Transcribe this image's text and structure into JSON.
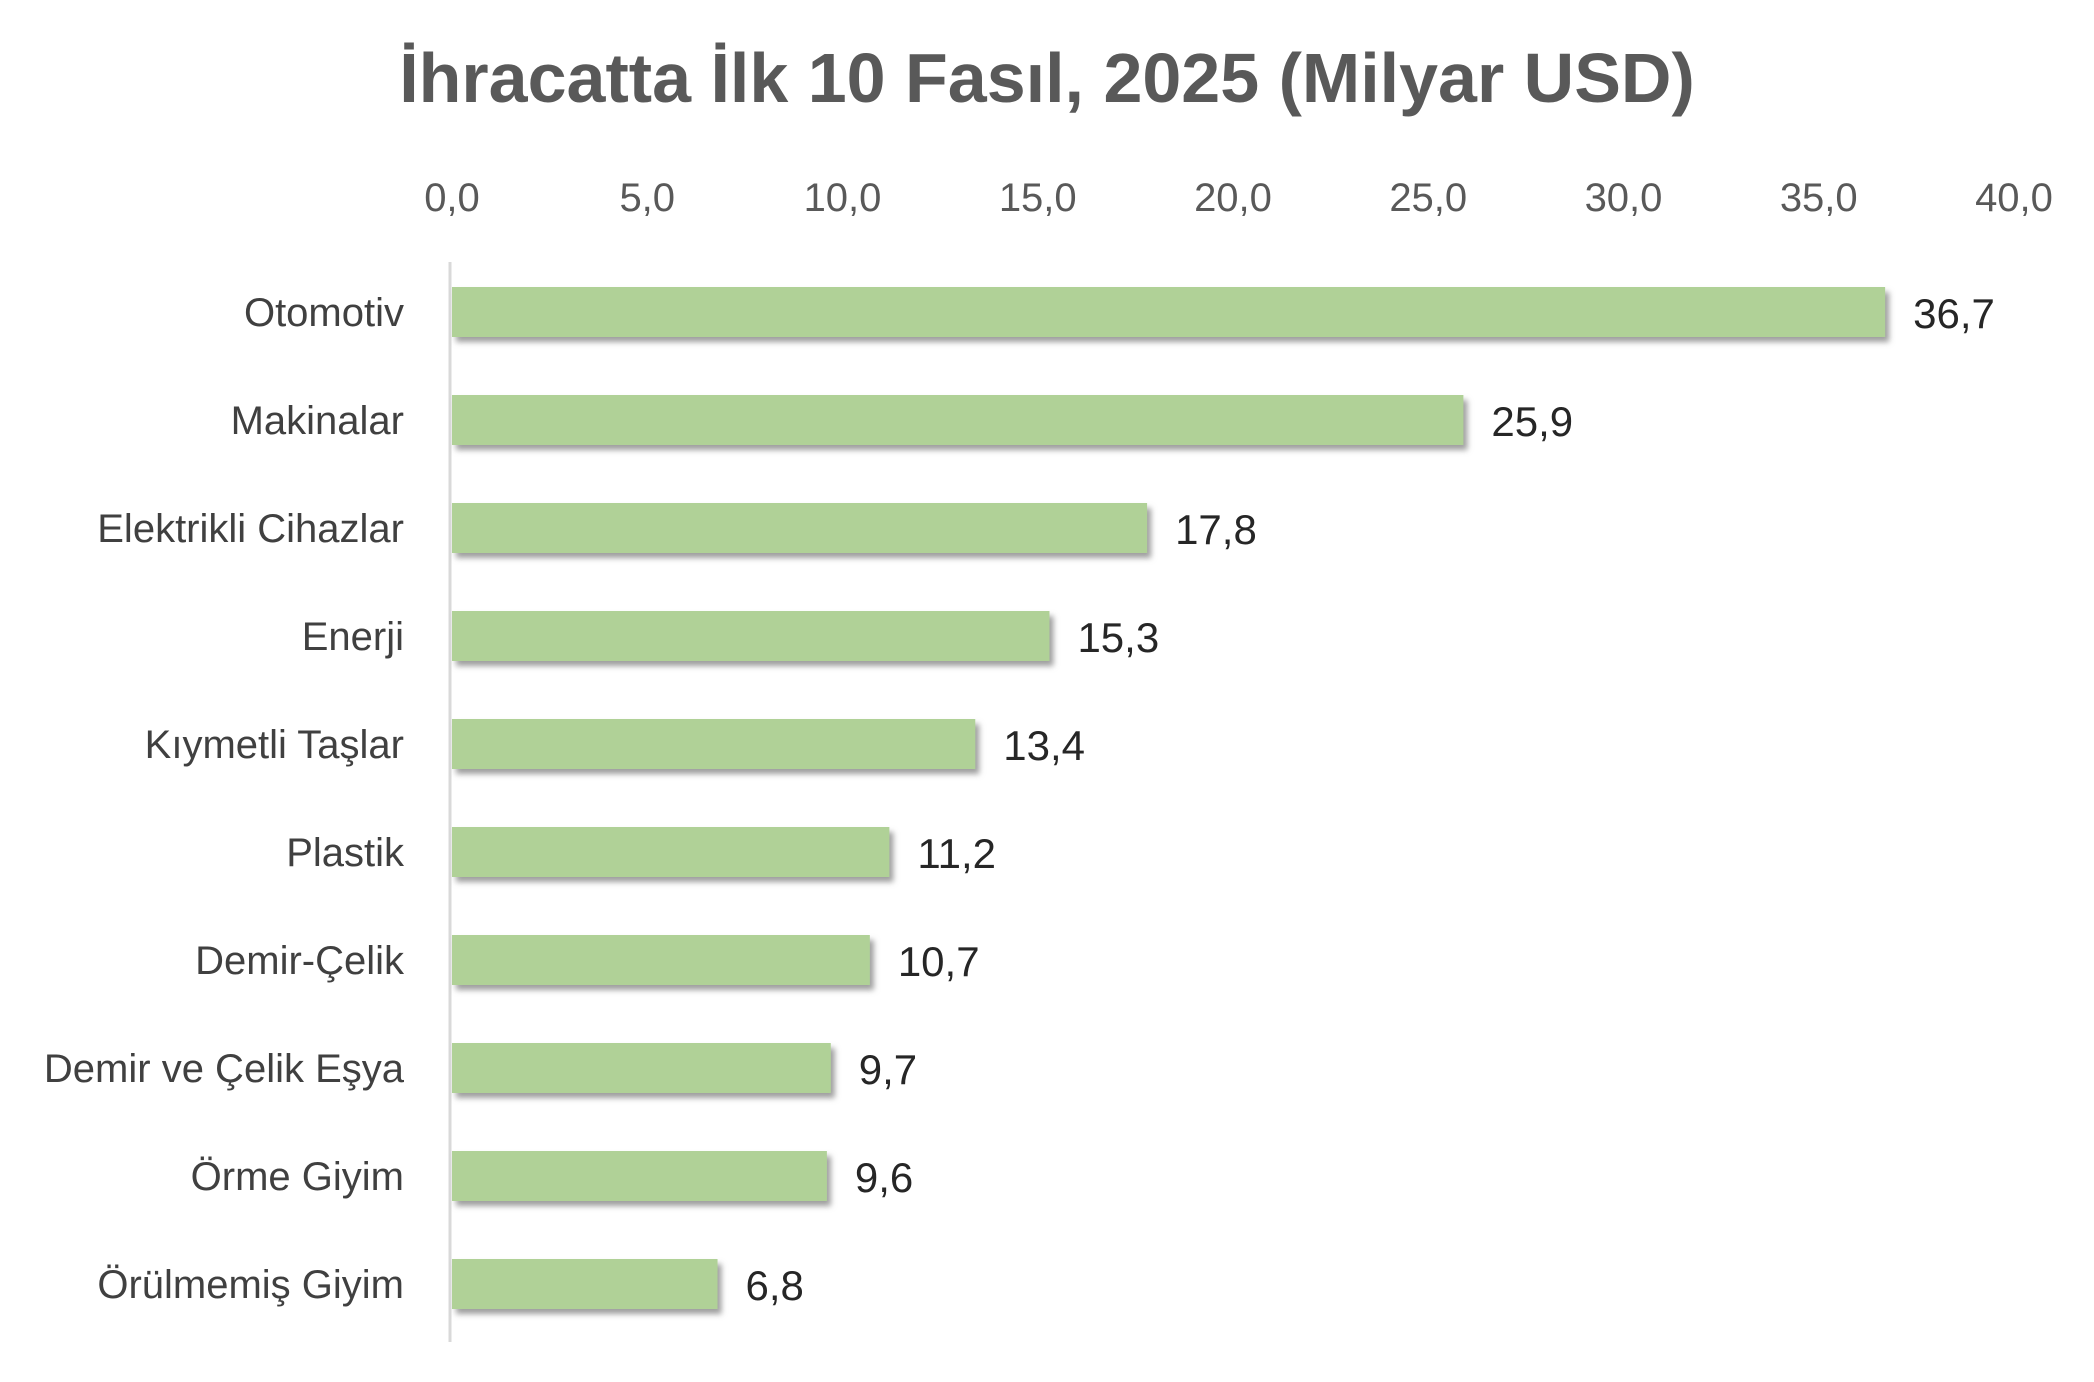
{
  "chart_data": {
    "type": "bar",
    "orientation": "horizontal",
    "title": "İhracatta İlk 10 Fasıl, 2025 (Milyar USD)",
    "categories": [
      "Otomotiv",
      "Makinalar",
      "Elektrikli Cihazlar",
      "Enerji",
      "Kıymetli Taşlar",
      "Plastik",
      "Demir-Çelik",
      "Demir ve Çelik Eşya",
      "Örme Giyim",
      "Örülmemiş Giyim"
    ],
    "values": [
      36.7,
      25.9,
      17.8,
      15.3,
      13.4,
      11.2,
      10.7,
      9.7,
      9.6,
      6.8
    ],
    "value_labels": [
      "36,7",
      "25,9",
      "17,8",
      "15,3",
      "13,4",
      "11,2",
      "10,7",
      "9,7",
      "9,6",
      "6,8"
    ],
    "xlim": [
      0,
      40
    ],
    "x_ticks": [
      "0,0",
      "5,0",
      "10,0",
      "15,0",
      "20,0",
      "25,0",
      "30,0",
      "35,0",
      "40,0"
    ],
    "axis_position": "top",
    "grid": false,
    "legend": "none",
    "colors": {
      "bar": "#b0d197",
      "bar_shadow": "#8a8a8a",
      "axis_line": "#d9d9d9",
      "title": "#595959",
      "tick_text": "#595959",
      "category_text": "#404040",
      "value_text": "#262626"
    }
  }
}
